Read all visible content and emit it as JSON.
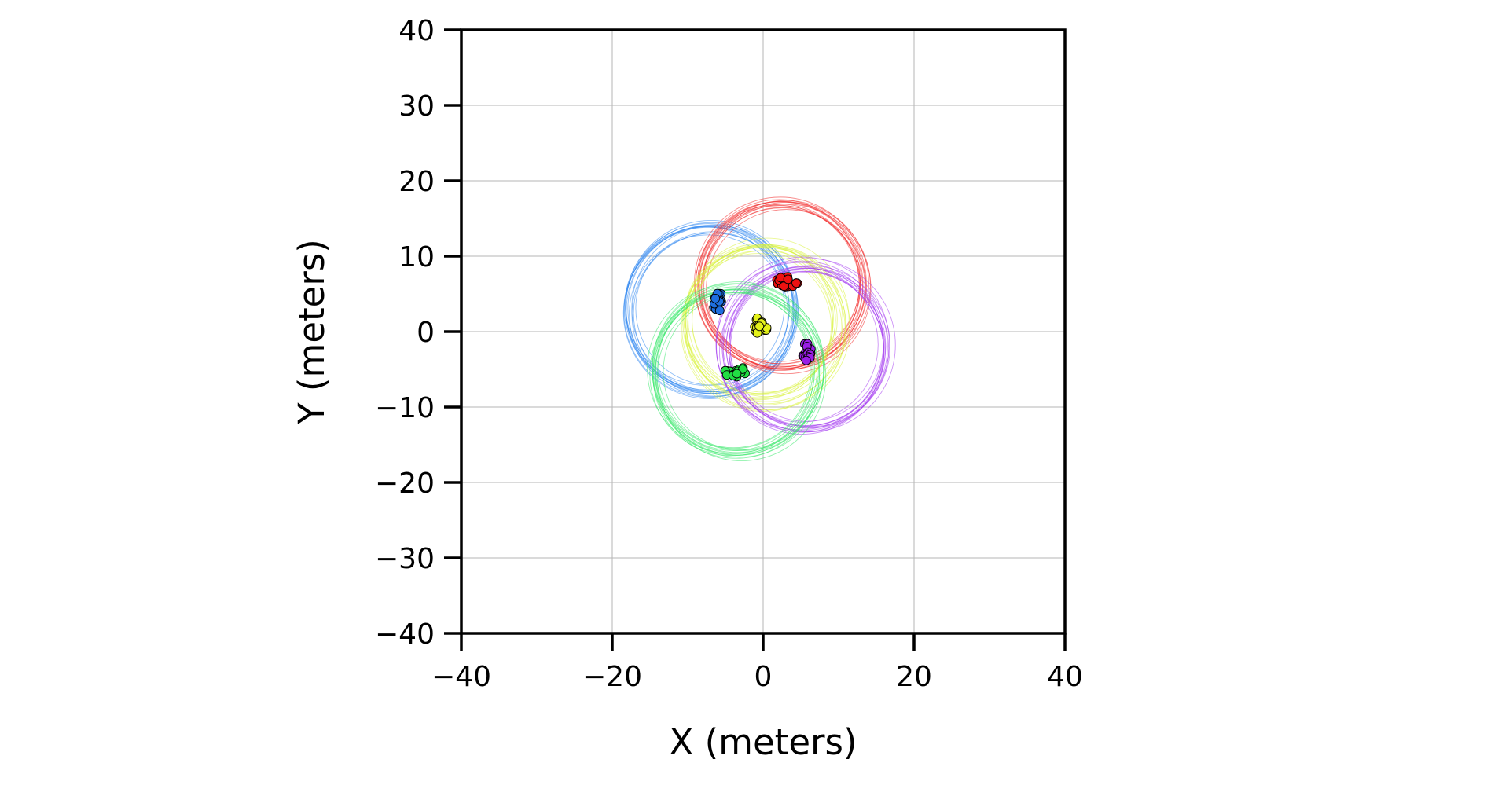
{
  "chart_data": {
    "type": "scatter",
    "xlabel": "X (meters)",
    "ylabel": "Y (meters)",
    "xlim": [
      -40,
      40
    ],
    "ylim": [
      -40,
      40
    ],
    "xticks": [
      -40,
      -20,
      0,
      20,
      40
    ],
    "yticks": [
      40,
      30,
      20,
      10,
      0,
      -10,
      -20,
      -30,
      -40
    ],
    "xtick_labels": [
      "−40",
      "−20",
      "0",
      "20",
      "40"
    ],
    "ytick_labels": [
      "40",
      "30",
      "20",
      "10",
      "0",
      "−10",
      "−20",
      "−30",
      "−40"
    ],
    "grid": true,
    "rings": [
      {
        "color": "#2f86f0",
        "center": [
          -7.0,
          2.8
        ],
        "radius": 10.8
      },
      {
        "color": "#f22a2a",
        "center": [
          2.5,
          6.2
        ],
        "radius": 10.8
      },
      {
        "color": "#d8f23a",
        "center": [
          0.0,
          1.0
        ],
        "radius": 10.3
      },
      {
        "color": "#a43af0",
        "center": [
          5.5,
          -2.3
        ],
        "radius": 10.8
      },
      {
        "color": "#35e868",
        "center": [
          -3.5,
          -5.3
        ],
        "radius": 10.8
      }
    ],
    "clusters": [
      {
        "color": "#1f6fe0",
        "center": [
          -6.0,
          4.0
        ],
        "spread": [
          0.7,
          1.3
        ]
      },
      {
        "color": "#ee1111",
        "center": [
          3.1,
          6.6
        ],
        "spread": [
          1.5,
          0.7
        ]
      },
      {
        "color": "#e4f21a",
        "center": [
          -0.4,
          0.8
        ],
        "spread": [
          1.1,
          1.1
        ]
      },
      {
        "color": "#9a1ee6",
        "center": [
          5.8,
          -2.6
        ],
        "spread": [
          0.7,
          1.3
        ]
      },
      {
        "color": "#22dd44",
        "center": [
          -3.7,
          -5.3
        ],
        "spread": [
          1.5,
          0.7
        ]
      }
    ]
  }
}
